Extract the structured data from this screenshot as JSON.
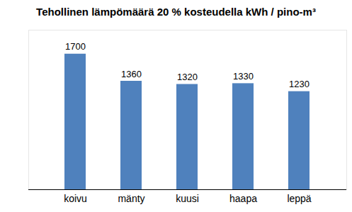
{
  "chart_data": {
    "type": "bar",
    "title": "Tehollinen lämpömäärä 20 % kosteudella kWh / pino-m³",
    "categories": [
      "koivu",
      "mänty",
      "kuusi",
      "haapa",
      "leppä"
    ],
    "values": [
      1700,
      1360,
      1320,
      1330,
      1230
    ],
    "color": "#4f81bd",
    "ylim": [
      0,
      2000
    ],
    "yticks": [],
    "grid": false,
    "data_labels": true,
    "tick_labels": "x"
  }
}
